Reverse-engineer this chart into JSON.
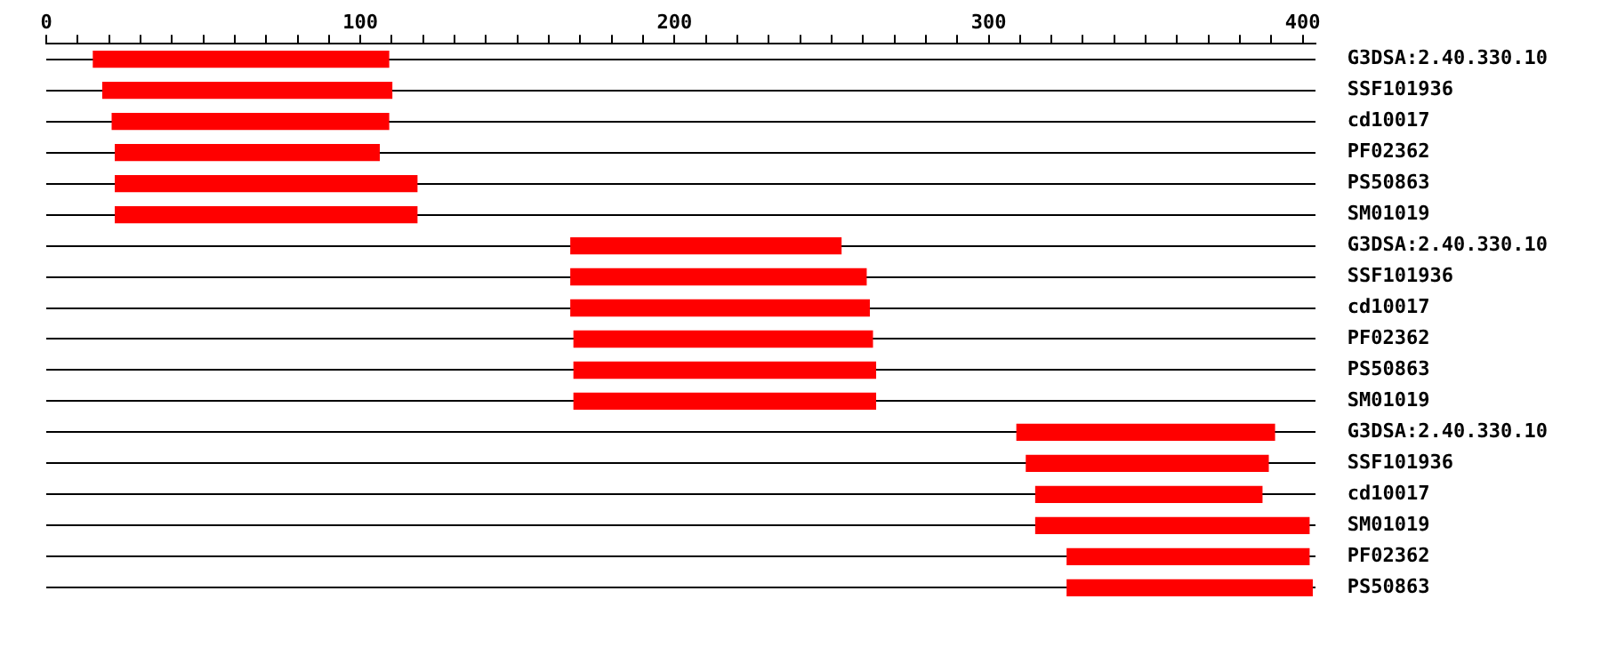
{
  "chart_data": {
    "type": "bar",
    "orientation": "horizontal",
    "categories": [
      "G3DSA:2.40.330.10",
      "SSF101936",
      "cd10017",
      "PF02362",
      "PS50863",
      "SM01019",
      "G3DSA:2.40.330.10",
      "SSF101936",
      "cd10017",
      "PF02362",
      "PS50863",
      "SM01019",
      "G3DSA:2.40.330.10",
      "SSF101936",
      "cd10017",
      "SM01019",
      "PF02362",
      "PS50863"
    ],
    "base": [
      15,
      18,
      21,
      22,
      22,
      22,
      167,
      167,
      167,
      168,
      168,
      168,
      309,
      312,
      315,
      315,
      325,
      325
    ],
    "values": [
      94,
      92,
      88,
      84,
      96,
      96,
      86,
      94,
      95,
      95,
      96,
      96,
      82,
      77,
      72,
      87,
      77,
      78
    ],
    "color": "#ff0000",
    "xlim": [
      0,
      404
    ],
    "xticks": [
      0,
      {
        "value": 10,
        "label": null
      },
      {
        "value": 20,
        "label": null
      },
      {
        "value": 30,
        "label": null
      },
      {
        "value": 40,
        "label": null
      },
      {
        "value": 50,
        "label": null
      },
      {
        "value": 60,
        "label": null
      },
      {
        "value": 70,
        "label": null
      },
      {
        "value": 80,
        "label": null
      },
      {
        "value": 90,
        "label": null
      },
      100,
      {
        "value": 110,
        "label": null
      },
      {
        "value": 120,
        "label": null
      },
      {
        "value": 130,
        "label": null
      },
      {
        "value": 140,
        "label": null
      },
      {
        "value": 150,
        "label": null
      },
      {
        "value": 160,
        "label": null
      },
      {
        "value": 170,
        "label": null
      },
      {
        "value": 180,
        "label": null
      },
      {
        "value": 190,
        "label": null
      },
      200,
      {
        "value": 210,
        "label": null
      },
      {
        "value": 220,
        "label": null
      },
      {
        "value": 230,
        "label": null
      },
      {
        "value": 240,
        "label": null
      },
      {
        "value": 250,
        "label": null
      },
      {
        "value": 260,
        "label": null
      },
      {
        "value": 270,
        "label": null
      },
      {
        "value": 280,
        "label": null
      },
      {
        "value": 290,
        "label": null
      },
      300,
      {
        "value": 310,
        "label": null
      },
      {
        "value": 320,
        "label": null
      },
      {
        "value": 330,
        "label": null
      },
      {
        "value": 340,
        "label": null
      },
      {
        "value": 350,
        "label": null
      },
      {
        "value": 360,
        "label": null
      },
      {
        "value": 370,
        "label": null
      },
      {
        "value": 380,
        "label": null
      },
      {
        "value": 390,
        "label": null
      },
      400
    ],
    "grid": "y",
    "legend": false
  }
}
